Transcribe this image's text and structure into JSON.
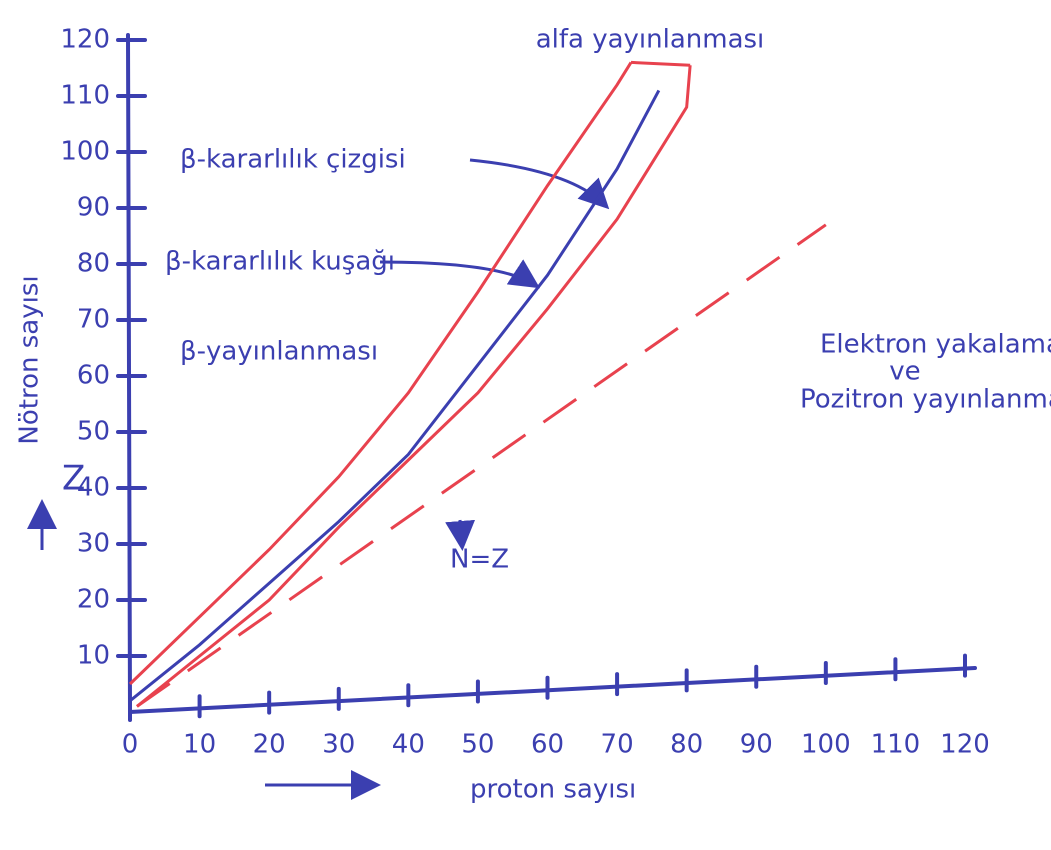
{
  "chart_data": {
    "type": "line",
    "x_label": "proton sayısı",
    "y_label": "Nötron sayısı",
    "y_symbol": "Z",
    "annotations": [
      "alfa yayınlanması",
      "β-kararlılık çizgisi",
      "β-kararlılık kuşağı",
      "β-yayınlanması",
      "Elektron yakalama",
      "ve",
      "Pozitron yayınlanması",
      "N=Z"
    ],
    "xlim": [
      0,
      120
    ],
    "ylim": [
      0,
      120
    ],
    "xticks": [
      0,
      10,
      20,
      30,
      40,
      50,
      60,
      70,
      80,
      90,
      100,
      110,
      120
    ],
    "yticks": [
      10,
      20,
      30,
      40,
      50,
      60,
      70,
      80,
      90,
      100,
      110,
      120
    ],
    "series": [
      {
        "color": "#3b3fb0",
        "dashed": false,
        "x": [
          0,
          10,
          20,
          30,
          40,
          50,
          60,
          70,
          76
        ],
        "values": [
          2,
          12,
          23,
          34,
          46,
          62,
          78,
          97,
          111
        ]
      },
      {
        "color": "#e8424e",
        "dashed": false,
        "x": [
          0,
          10,
          20,
          30,
          40,
          50,
          60,
          70,
          72
        ],
        "values": [
          5,
          17,
          29,
          42,
          57,
          75,
          94,
          112,
          116
        ]
      },
      {
        "color": "#e8424e",
        "dashed": false,
        "x": [
          1,
          10,
          20,
          30,
          40,
          50,
          60,
          70,
          80,
          80.5
        ],
        "values": [
          1,
          10,
          20,
          33,
          45,
          57,
          72,
          88,
          108,
          115.5
        ]
      },
      {
        "color": "#e8424e",
        "dashed": false,
        "x": [
          72,
          80.5
        ],
        "values": [
          116,
          115.5
        ]
      },
      {
        "color": "#e8424e",
        "dashed": true,
        "x": [
          1,
          100
        ],
        "values": [
          1,
          87
        ]
      }
    ]
  }
}
